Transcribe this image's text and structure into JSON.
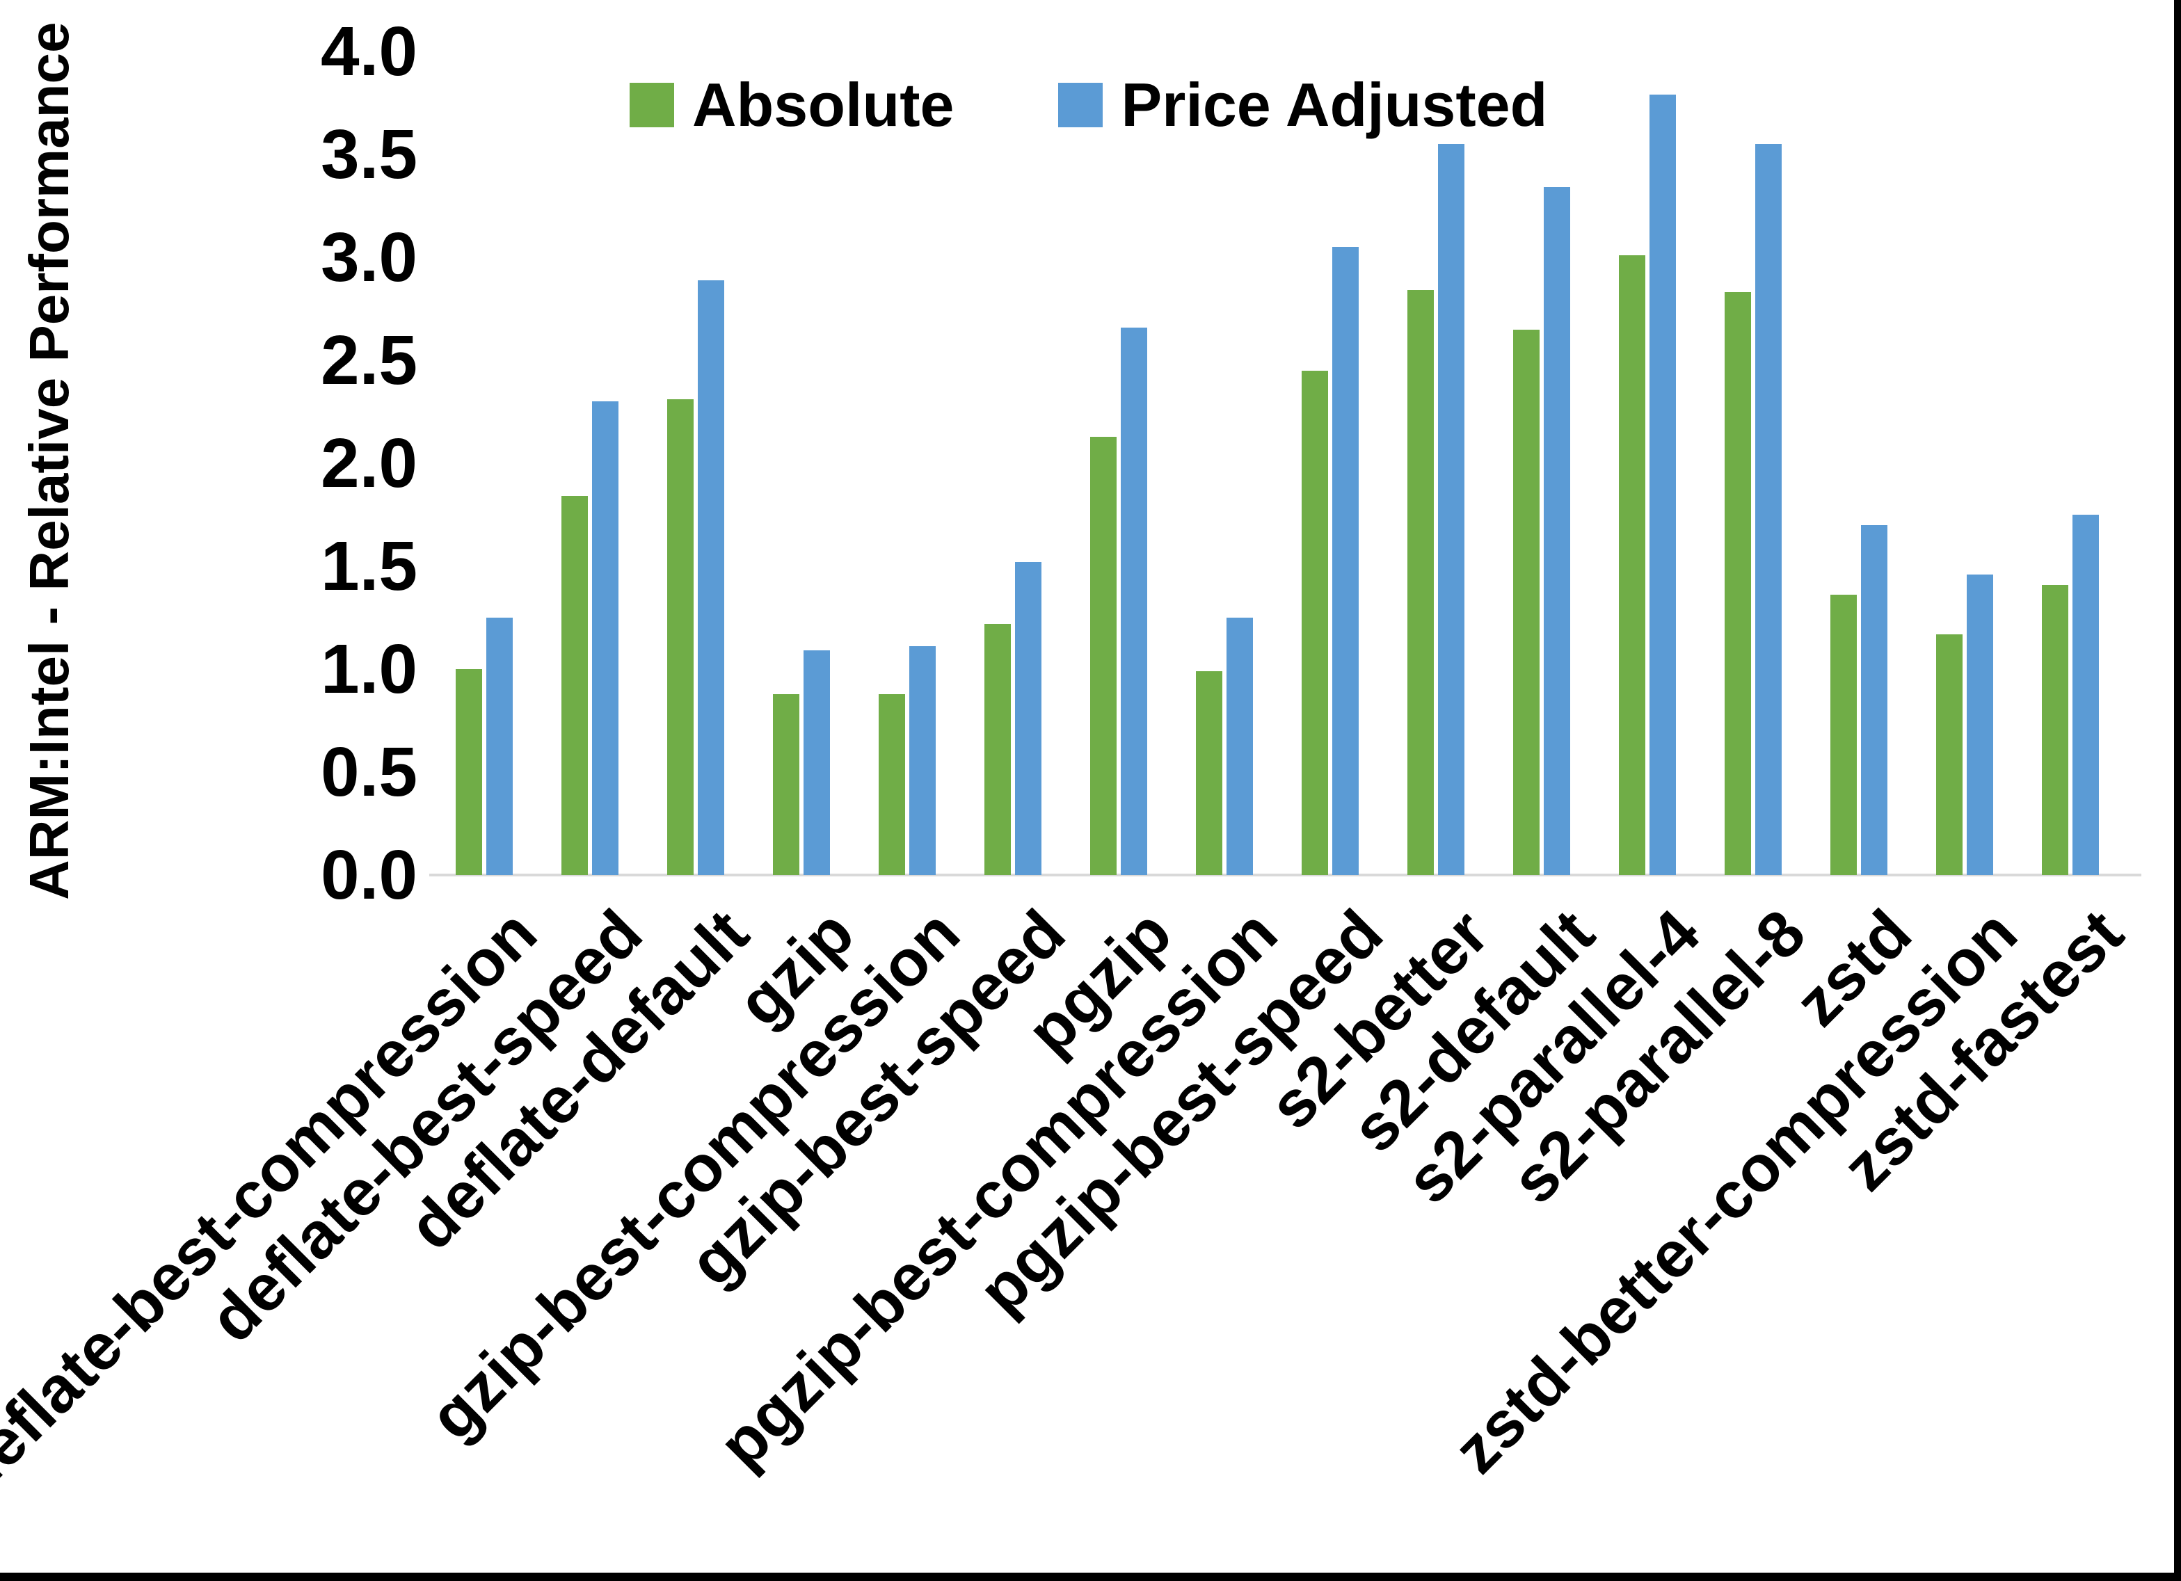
{
  "chart_data": {
    "type": "bar",
    "title": "",
    "xlabel": "",
    "ylabel": "ARM:Intel - Relative Performance",
    "ylim": [
      0.0,
      4.0
    ],
    "ytick_step": 0.5,
    "ytick_labels": [
      "0.0",
      "0.5",
      "1.0",
      "1.5",
      "2.0",
      "2.5",
      "3.0",
      "3.5",
      "4.0"
    ],
    "grid": false,
    "legend_position": "top-center",
    "axis_line_color": "#d9d9d9",
    "text_color": "#000000",
    "categories": [
      "deflate-best-compression",
      "deflate-best-speed",
      "deflate-default",
      "gzip",
      "gzip-best-compression",
      "gzip-best-speed",
      "pgzip",
      "pgzip-best-compression",
      "pgzip-best-speed",
      "s2-better",
      "s2-default",
      "s2-parallel-4",
      "s2-parallel-8",
      "zstd",
      "zstd-better-compression",
      "zstd-fastest"
    ],
    "series": [
      {
        "name": "Absolute",
        "color": "#70AD47",
        "values": [
          1.0,
          1.84,
          2.31,
          0.88,
          0.88,
          1.22,
          2.13,
          0.99,
          2.45,
          2.84,
          2.65,
          3.01,
          2.83,
          1.36,
          1.17,
          1.41
        ]
      },
      {
        "name": "Price Adjusted",
        "color": "#5B9BD5",
        "values": [
          1.25,
          2.3,
          2.89,
          1.09,
          1.11,
          1.52,
          2.66,
          1.25,
          3.05,
          3.55,
          3.34,
          3.79,
          3.55,
          1.7,
          1.46,
          1.75
        ]
      }
    ]
  }
}
